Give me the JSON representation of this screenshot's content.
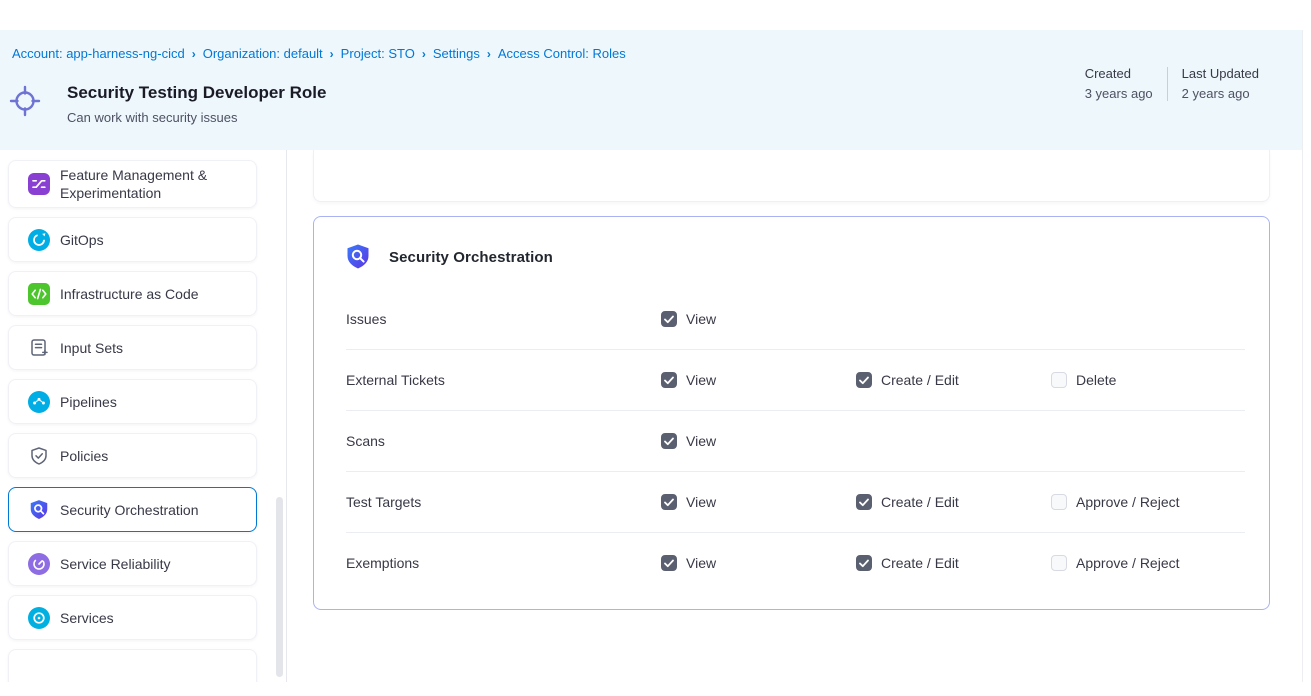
{
  "breadcrumb": {
    "separator": "›",
    "items": [
      "Account: app-harness-ng-cicd",
      "Organization: default",
      "Project: STO",
      "Settings",
      "Access Control: Roles"
    ]
  },
  "header": {
    "icon": "target-crosshair-icon",
    "title": "Security Testing Developer Role",
    "subtitle": "Can work with security issues",
    "meta": {
      "created_label": "Created",
      "created_value": "3 years ago",
      "updated_label": "Last Updated",
      "updated_value": "2 years ago"
    }
  },
  "sidebar": {
    "items": [
      {
        "label": "Feature Management & Experimentation",
        "icon": "feature-management-icon",
        "selected": false
      },
      {
        "label": "GitOps",
        "icon": "gitops-icon",
        "selected": false
      },
      {
        "label": "Infrastructure as Code",
        "icon": "infrastructure-as-code-icon",
        "selected": false
      },
      {
        "label": "Input Sets",
        "icon": "input-sets-icon",
        "selected": false
      },
      {
        "label": "Pipelines",
        "icon": "pipelines-icon",
        "selected": false
      },
      {
        "label": "Policies",
        "icon": "policies-icon",
        "selected": false
      },
      {
        "label": "Security Orchestration",
        "icon": "security-orchestration-icon",
        "selected": true
      },
      {
        "label": "Service Reliability",
        "icon": "service-reliability-icon",
        "selected": false
      },
      {
        "label": "Services",
        "icon": "services-icon",
        "selected": false
      }
    ]
  },
  "permissions": {
    "section_title": "Security Orchestration",
    "section_icon": "security-orchestration-shield-icon",
    "rows": [
      {
        "resource": "Issues",
        "permissions": [
          {
            "label": "View",
            "checked": true
          }
        ]
      },
      {
        "resource": "External Tickets",
        "permissions": [
          {
            "label": "View",
            "checked": true
          },
          {
            "label": "Create / Edit",
            "checked": true
          },
          {
            "label": "Delete",
            "checked": false
          }
        ]
      },
      {
        "resource": "Scans",
        "permissions": [
          {
            "label": "View",
            "checked": true
          }
        ]
      },
      {
        "resource": "Test Targets",
        "permissions": [
          {
            "label": "View",
            "checked": true
          },
          {
            "label": "Create / Edit",
            "checked": true
          },
          {
            "label": "Approve / Reject",
            "checked": false
          }
        ]
      },
      {
        "resource": "Exemptions",
        "permissions": [
          {
            "label": "View",
            "checked": true
          },
          {
            "label": "Create / Edit",
            "checked": true
          },
          {
            "label": "Approve / Reject",
            "checked": false
          }
        ]
      }
    ]
  },
  "colors": {
    "link_blue": "#0278d5",
    "header_bg": "#edf7fc",
    "selected_border": "#0278d5",
    "card_border": "#a9b3f3",
    "checkbox_checked": "#5b6070",
    "text_dark": "#22272f",
    "text_muted": "#4f5162"
  }
}
